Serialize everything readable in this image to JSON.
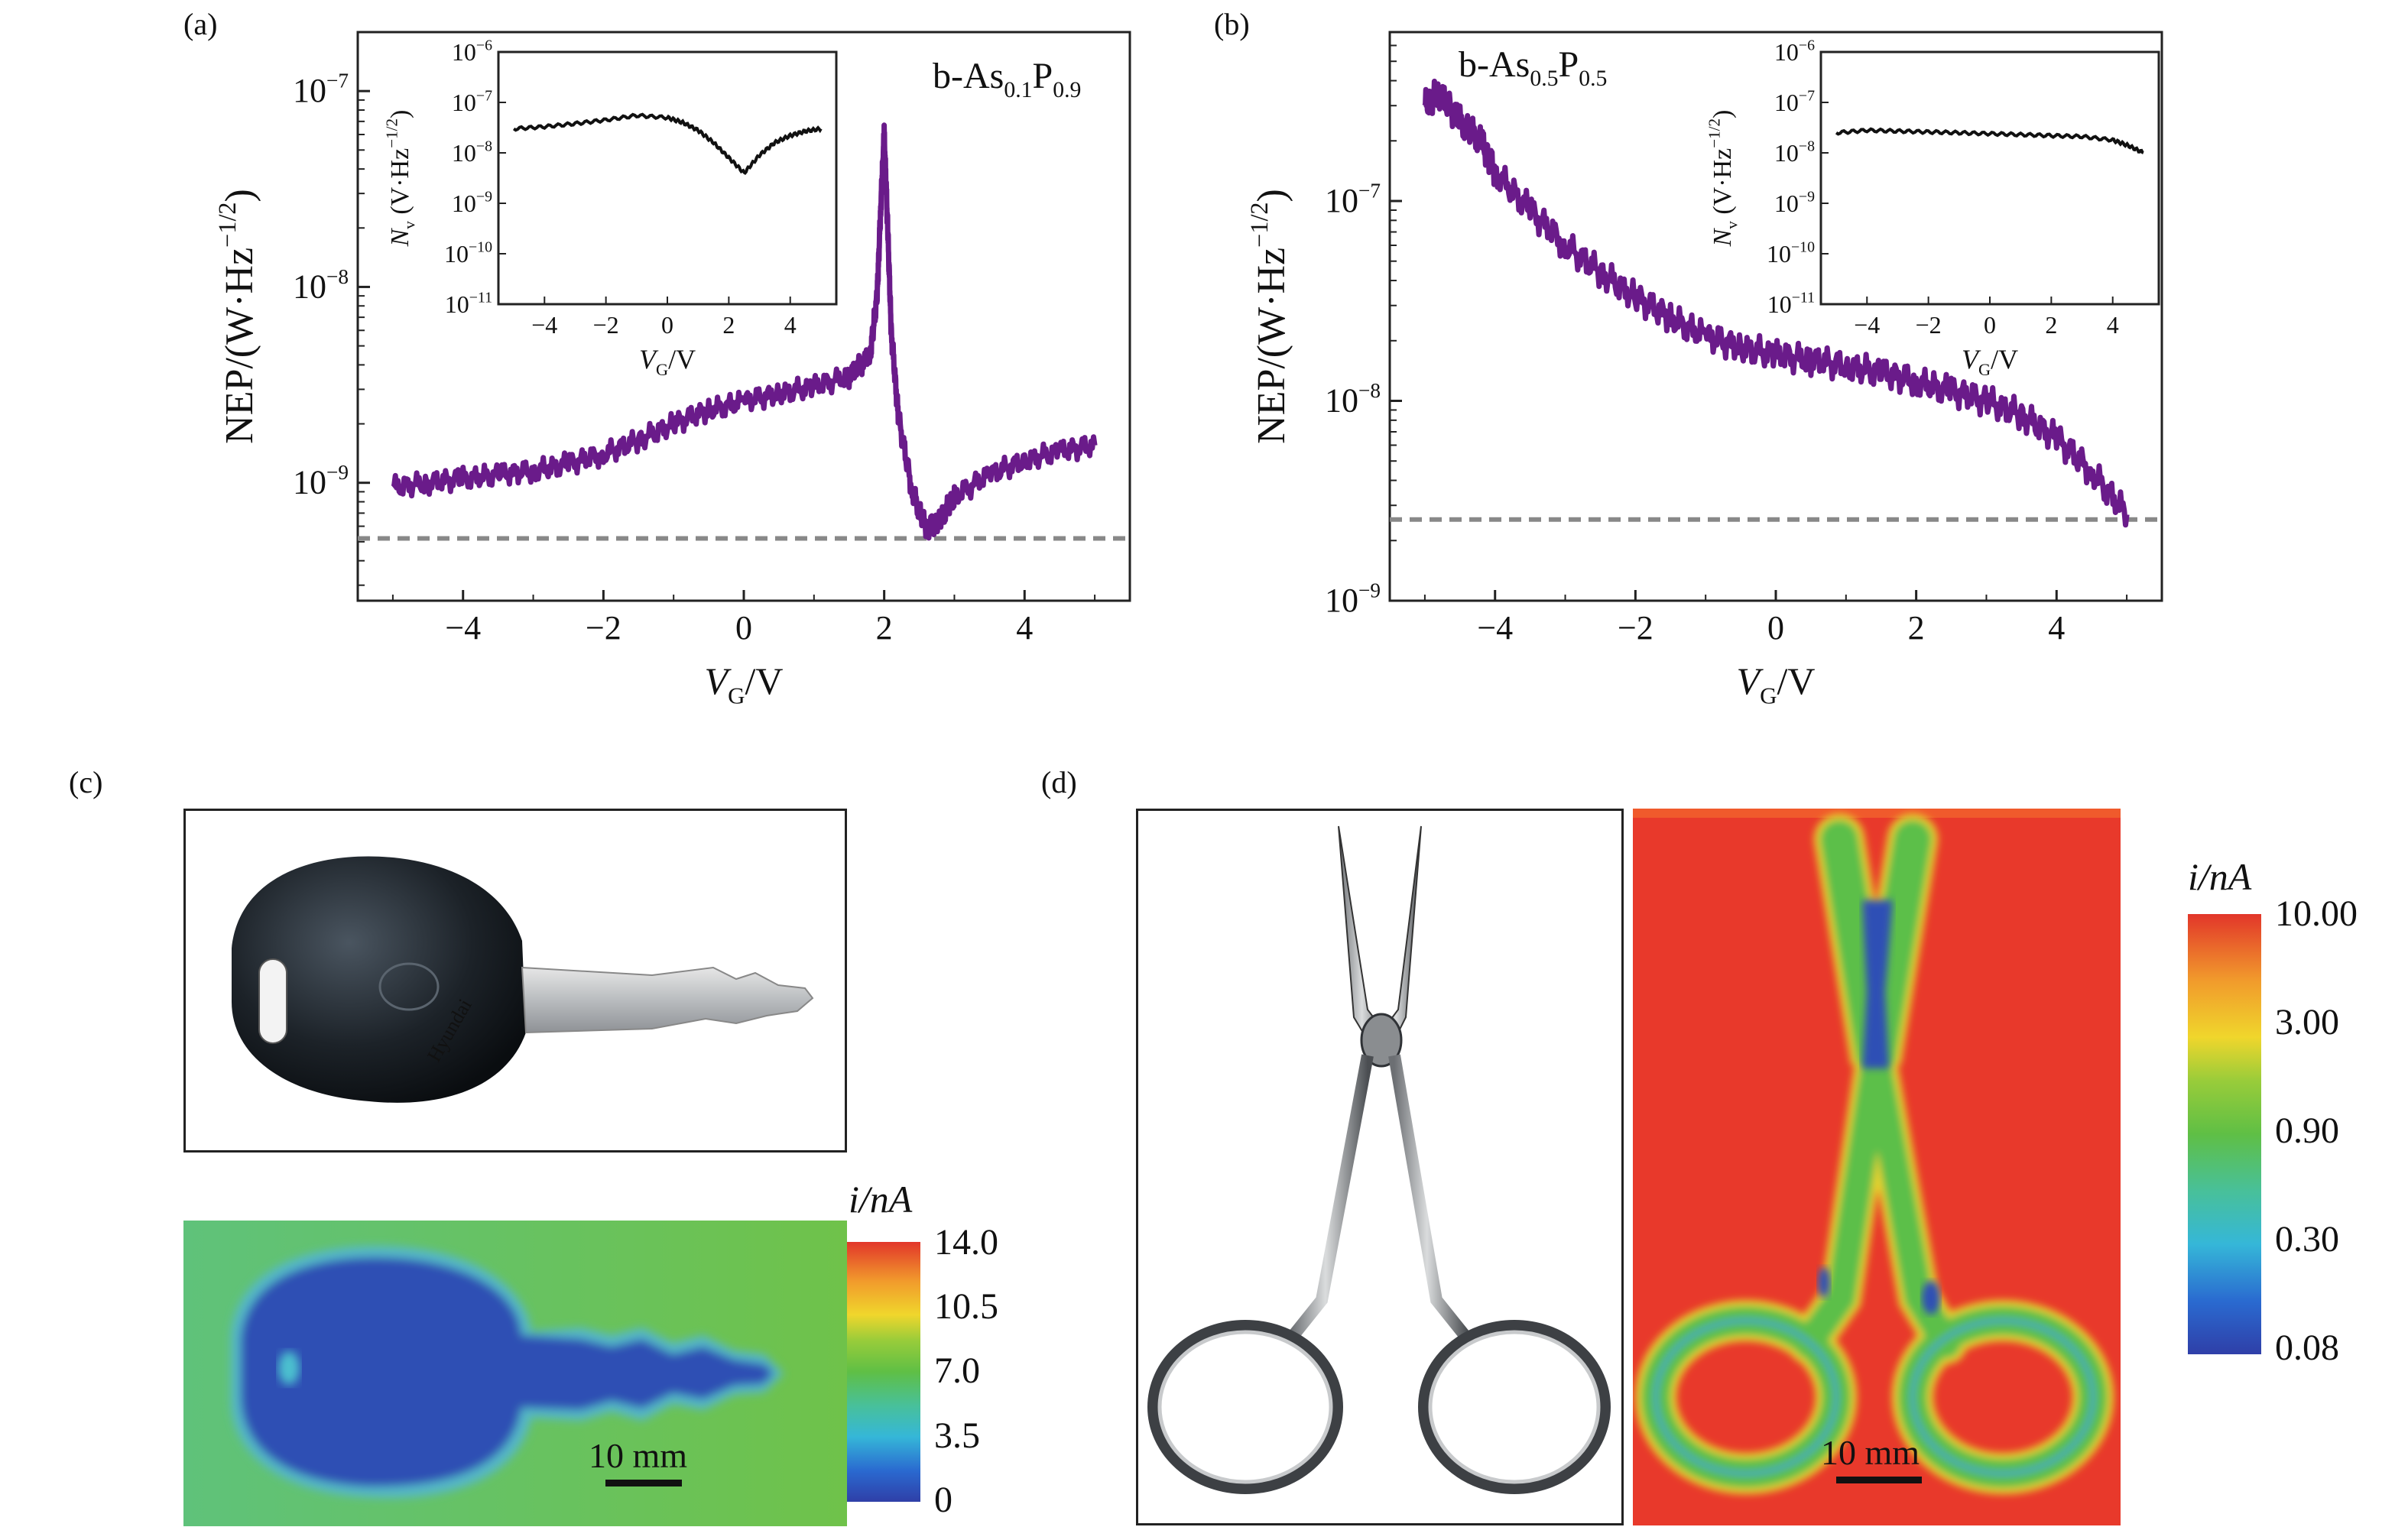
{
  "panels": {
    "a": "(a)",
    "b": "(b)",
    "c": "(c)",
    "d": "(d)"
  },
  "chart_data": [
    {
      "panel": "a",
      "type": "line",
      "ylabel": "NEP/(W·Hz−1/2)",
      "xlabel": "VG/V",
      "yscale": "log",
      "xlim": [
        -5.5,
        5.5
      ],
      "ylim": [
        2.5e-10,
        2e-07
      ],
      "xticks": [
        -4,
        -2,
        0,
        2,
        4
      ],
      "yticks": [
        1e-09,
        1e-08,
        1e-07
      ],
      "ytick_labels": [
        "10−9",
        "10−8",
        "10−7"
      ],
      "annotation": "b-As0.1P0.9",
      "series": [
        {
          "color": "#6a1b8a",
          "x": [
            -5.0,
            -4.5,
            -4.0,
            -3.5,
            -3.0,
            -2.5,
            -2.0,
            -1.5,
            -1.0,
            -0.5,
            0.0,
            0.5,
            1.0,
            1.5,
            1.8,
            1.9,
            1.95,
            2.0,
            2.05,
            2.1,
            2.2,
            2.4,
            2.6,
            2.8,
            3.0,
            3.5,
            4.0,
            4.5,
            5.0
          ],
          "y": [
            9.5e-10,
            1e-09,
            1.05e-09,
            1.1e-09,
            1.15e-09,
            1.25e-09,
            1.4e-09,
            1.65e-09,
            2e-09,
            2.35e-09,
            2.6e-09,
            2.85e-09,
            3.1e-09,
            3.5e-09,
            4.5e-09,
            9e-09,
            2.5e-08,
            6e-08,
            2e-08,
            6e-09,
            2.2e-09,
            9e-10,
            5.8e-10,
            6.5e-10,
            8.5e-10,
            1.1e-09,
            1.3e-09,
            1.45e-09,
            1.55e-09
          ]
        }
      ],
      "reference_line": {
        "y": 5.2e-10,
        "style": "dashed",
        "color": "#888888"
      },
      "inset": {
        "ylabel": "Nv (V·Hz−1/2)",
        "xlabel": "VG/V",
        "yscale": "log",
        "xlim": [
          -5.5,
          5.5
        ],
        "ylim": [
          1e-11,
          1e-06
        ],
        "xticks": [
          -4,
          -2,
          0,
          2,
          4
        ],
        "yticks": [
          1e-11,
          1e-10,
          1e-09,
          1e-08,
          1e-07,
          1e-06
        ],
        "ytick_labels": [
          "10−11",
          "10−10",
          "10−9",
          "10−8",
          "10−7",
          "10−6"
        ],
        "series": [
          {
            "color": "#111111",
            "x": [
              -5.0,
              -4.0,
              -3.0,
              -2.0,
              -1.0,
              0.0,
              0.5,
              1.0,
              1.5,
              2.0,
              2.5,
              3.0,
              3.5,
              4.0,
              4.5,
              5.0
            ],
            "y": [
              3e-08,
              3.3e-08,
              3.8e-08,
              4.5e-08,
              5.5e-08,
              5e-08,
              4e-08,
              2.8e-08,
              1.6e-08,
              8e-09,
              4e-09,
              9e-09,
              1.6e-08,
              2.2e-08,
              2.7e-08,
              3e-08
            ]
          }
        ]
      }
    },
    {
      "panel": "b",
      "type": "line",
      "ylabel": "NEP/(W·Hz−1/2)",
      "xlabel": "VG/V",
      "yscale": "log",
      "xlim": [
        -5.5,
        5.5
      ],
      "ylim": [
        1e-09,
        7e-07
      ],
      "xticks": [
        -4,
        -2,
        0,
        2,
        4
      ],
      "yticks": [
        1e-09,
        1e-08,
        1e-07
      ],
      "ytick_labels": [
        "10−9",
        "10−8",
        "10−7"
      ],
      "annotation": "b-As0.5P0.5",
      "series": [
        {
          "color": "#6a1b8a",
          "x": [
            -5.0,
            -4.8,
            -4.5,
            -4.2,
            -4.0,
            -3.5,
            -3.0,
            -2.5,
            -2.0,
            -1.5,
            -1.0,
            -0.5,
            0.0,
            0.5,
            1.0,
            1.5,
            2.0,
            2.5,
            3.0,
            3.5,
            4.0,
            4.5,
            5.0
          ],
          "y": [
            3e-07,
            3.5e-07,
            2.5e-07,
            2e-07,
            1.4e-07,
            9e-08,
            6e-08,
            4.4e-08,
            3.3e-08,
            2.6e-08,
            2.1e-08,
            1.85e-08,
            1.7e-08,
            1.6e-08,
            1.5e-08,
            1.38e-08,
            1.25e-08,
            1.12e-08,
            1e-08,
            8.5e-09,
            6.5e-09,
            4.4e-09,
            2.7e-09
          ]
        }
      ],
      "reference_line": {
        "y": 2.55e-09,
        "style": "dashed",
        "color": "#888888"
      },
      "inset": {
        "ylabel": "Nv (V·Hz−1/2)",
        "xlabel": "VG/V",
        "yscale": "log",
        "xlim": [
          -5.5,
          5.5
        ],
        "ylim": [
          1e-11,
          1e-06
        ],
        "xticks": [
          -4,
          -2,
          0,
          2,
          4
        ],
        "yticks": [
          1e-11,
          1e-10,
          1e-09,
          1e-08,
          1e-07,
          1e-06
        ],
        "ytick_labels": [
          "10−11",
          "10−10",
          "10−9",
          "10−8",
          "10−7",
          "10−6"
        ],
        "series": [
          {
            "color": "#111111",
            "x": [
              -5.0,
              -4.0,
              -3.0,
              -2.0,
              -1.0,
              0.0,
              1.0,
              2.0,
              3.0,
              4.0,
              4.5,
              5.0
            ],
            "y": [
              2.5e-08,
              2.8e-08,
              2.7e-08,
              2.6e-08,
              2.5e-08,
              2.4e-08,
              2.3e-08,
              2.2e-08,
              2.1e-08,
              1.8e-08,
              1.4e-08,
              1e-08
            ]
          }
        ]
      }
    }
  ],
  "colorbar_c": {
    "title": "i/nA",
    "ticks": [
      "14.0",
      "10.5",
      "7.0",
      "3.5",
      "0"
    ]
  },
  "colorbar_d": {
    "title": "i/nA",
    "ticks": [
      "10.00",
      "3.00",
      "0.90",
      "0.30",
      "0.08"
    ]
  },
  "scalebars": {
    "c": "10 mm",
    "d": "10 mm"
  },
  "key_label": "Hyundai"
}
